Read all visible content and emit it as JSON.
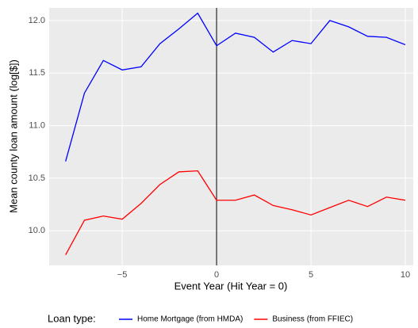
{
  "chart_data": {
    "type": "line",
    "xlabel": "Event Year (Hit Year = 0)",
    "ylabel": "Mean county loan amount (log[$])",
    "x": [
      -8,
      -7,
      -6,
      -5,
      -4,
      -3,
      -2,
      -1,
      0,
      1,
      2,
      3,
      4,
      5,
      6,
      7,
      8,
      9,
      10
    ],
    "series": [
      {
        "name": "Home Mortgage (from HMDA)",
        "color": "#0000ff",
        "values": [
          10.66,
          11.31,
          11.62,
          11.53,
          11.56,
          11.78,
          11.92,
          12.07,
          11.76,
          11.88,
          11.84,
          11.7,
          11.81,
          11.78,
          12.0,
          11.94,
          11.85,
          11.84,
          11.77
        ]
      },
      {
        "name": "Business (from FFIEC)",
        "color": "#ff0000",
        "values": [
          9.77,
          10.1,
          10.14,
          10.11,
          10.26,
          10.44,
          10.56,
          10.57,
          10.29,
          10.29,
          10.34,
          10.24,
          10.2,
          10.15,
          10.22,
          10.29,
          10.23,
          10.32,
          10.29
        ]
      }
    ],
    "xlim": [
      -8.87,
      10.42
    ],
    "ylim": [
      9.67,
      12.12
    ],
    "xticks": [
      {
        "value": -5,
        "label": "−5"
      },
      0,
      5,
      10
    ],
    "yticks": [
      {
        "value": 10,
        "label": "10.0"
      },
      10.5,
      {
        "value": 11,
        "label": "11.0"
      },
      11.5,
      {
        "value": 12,
        "label": "12.0"
      }
    ],
    "vline": 0,
    "legend_title": "Loan type:",
    "legend_position": "bottom",
    "grid": true
  }
}
